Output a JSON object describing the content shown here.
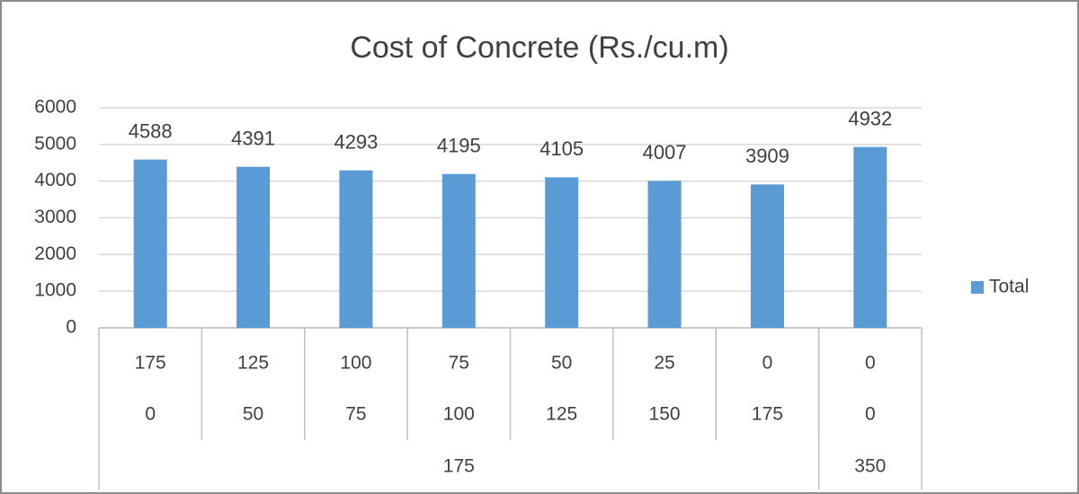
{
  "chart_data": {
    "type": "bar",
    "title": "Cost of Concrete (Rs./cu.m)",
    "categories": [
      "175",
      "125",
      "100",
      "75",
      "50",
      "25",
      "0",
      "0"
    ],
    "categories2": [
      "0",
      "50",
      "75",
      "100",
      "125",
      "150",
      "175",
      "0"
    ],
    "groups": [
      {
        "label": "175",
        "count": 7
      },
      {
        "label": "350",
        "count": 1
      }
    ],
    "series": [
      {
        "name": "Total",
        "color": "#5b9bd5",
        "values": [
          4588,
          4391,
          4293,
          4195,
          4105,
          4007,
          3909,
          4932
        ]
      }
    ],
    "ylim": [
      0,
      6000
    ],
    "yticks": [
      0,
      1000,
      2000,
      3000,
      4000,
      5000,
      6000
    ],
    "grid": true,
    "legend": "right"
  }
}
